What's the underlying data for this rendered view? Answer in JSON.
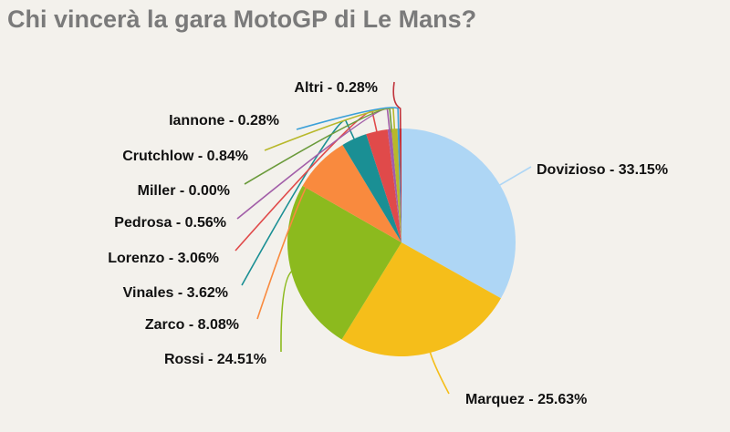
{
  "chart_data": {
    "type": "pie",
    "title": "Chi vincerà la gara MotoGP di Le Mans?",
    "start": "top",
    "direction": "clockwise",
    "slices": [
      {
        "name": "Dovizioso",
        "value": 33.15,
        "label": "Dovizioso - 33.15%",
        "color": "#aed6f5"
      },
      {
        "name": "Marquez",
        "value": 25.63,
        "label": "Marquez - 25.63%",
        "color": "#f5be1a"
      },
      {
        "name": "Rossi",
        "value": 24.51,
        "label": "Rossi - 24.51%",
        "color": "#8cba1e"
      },
      {
        "name": "Zarco",
        "value": 8.08,
        "label": "Zarco - 8.08%",
        "color": "#f98a3e"
      },
      {
        "name": "Vinales",
        "value": 3.62,
        "label": "Vinales - 3.62%",
        "color": "#1a8f94"
      },
      {
        "name": "Lorenzo",
        "value": 3.06,
        "label": "Lorenzo - 3.06%",
        "color": "#e04a4a"
      },
      {
        "name": "Pedrosa",
        "value": 0.56,
        "label": "Pedrosa - 0.56%",
        "color": "#a25ea8"
      },
      {
        "name": "Miller",
        "value": 0.0,
        "label": "Miller - 0.00%",
        "color": "#6a9a3a"
      },
      {
        "name": "Crutchlow",
        "value": 0.84,
        "label": "Crutchlow - 0.84%",
        "color": "#b8b82a"
      },
      {
        "name": "Iannone",
        "value": 0.28,
        "label": "Iannone - 0.28%",
        "color": "#3ba0d8"
      },
      {
        "name": "Altri",
        "value": 0.28,
        "label": "Altri - 0.28%",
        "color": "#c0323a"
      }
    ]
  }
}
